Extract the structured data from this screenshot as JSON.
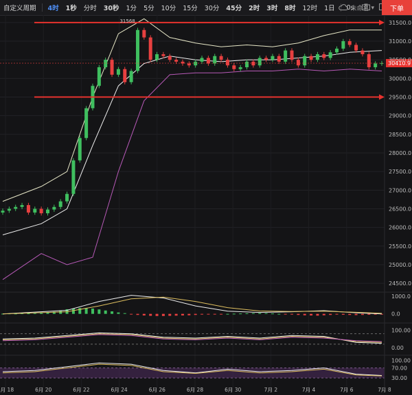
{
  "toolbar": {
    "custom_period": "自定义周期",
    "intervals": [
      "4时",
      "1秒",
      "分时",
      "30秒",
      "1分",
      "5分",
      "10分",
      "15分",
      "30分",
      "45分",
      "2时",
      "3时",
      "8时",
      "12时",
      "1日"
    ],
    "active_interval": "4时",
    "bold_intervals": [
      "4时",
      "1秒",
      "30秒",
      "45分",
      "2时",
      "3时",
      "8时"
    ],
    "seconds_label": "0s",
    "cloud_label": "未命名",
    "order_button": "下单"
  },
  "chart_data": [
    {
      "type": "candlestick",
      "title": "",
      "ylim": [
        24300,
        31700
      ],
      "y_ticks": [
        24500,
        25000,
        25500,
        26000,
        26500,
        27000,
        27500,
        28000,
        28500,
        29000,
        29500,
        30000,
        30500,
        31000,
        31500
      ],
      "x_ticks": [
        "6月 18",
        "6月 20",
        "6月 22",
        "6月 24",
        "6月 26",
        "6月 28",
        "6月 30",
        "7月 2",
        "7月 4",
        "7月 6",
        "7月 8"
      ],
      "annotations": {
        "high_label": "31568",
        "last_price": "30410.9"
      },
      "horizontal_lines": [
        31500,
        29500
      ],
      "close_points": [
        [
          0,
          26450
        ],
        [
          1,
          26500
        ],
        [
          2,
          26550
        ],
        [
          3,
          26600
        ],
        [
          4,
          26400
        ],
        [
          5,
          26500
        ],
        [
          6,
          26380
        ],
        [
          7,
          26480
        ],
        [
          8,
          26550
        ],
        [
          9,
          26700
        ],
        [
          10,
          26900
        ],
        [
          11,
          27800
        ],
        [
          12,
          28400
        ],
        [
          13,
          29200
        ],
        [
          14,
          29800
        ],
        [
          15,
          30300
        ],
        [
          16,
          30500
        ],
        [
          17,
          30100
        ],
        [
          18,
          30250
        ],
        [
          19,
          29900
        ],
        [
          20,
          30200
        ],
        [
          21,
          31300
        ],
        [
          22,
          31100
        ],
        [
          23,
          30500
        ],
        [
          24,
          30650
        ],
        [
          25,
          30600
        ],
        [
          26,
          30500
        ],
        [
          27,
          30450
        ],
        [
          28,
          30400
        ],
        [
          29,
          30350
        ],
        [
          30,
          30450
        ],
        [
          31,
          30550
        ],
        [
          32,
          30400
        ],
        [
          33,
          30600
        ],
        [
          34,
          30500
        ],
        [
          35,
          30350
        ],
        [
          36,
          30250
        ],
        [
          37,
          30300
        ],
        [
          38,
          30450
        ],
        [
          39,
          30350
        ],
        [
          40,
          30550
        ],
        [
          41,
          30500
        ],
        [
          42,
          30600
        ],
        [
          43,
          30450
        ],
        [
          44,
          30750
        ],
        [
          45,
          30500
        ],
        [
          46,
          30350
        ],
        [
          47,
          30600
        ],
        [
          48,
          30500
        ],
        [
          49,
          30650
        ],
        [
          50,
          30550
        ],
        [
          51,
          30700
        ],
        [
          52,
          30800
        ],
        [
          53,
          31000
        ],
        [
          54,
          30900
        ],
        [
          55,
          30750
        ],
        [
          56,
          30650
        ],
        [
          57,
          30300
        ],
        [
          58,
          30400
        ],
        [
          59,
          30410
        ]
      ],
      "bollinger": {
        "upper": [
          [
            0,
            26700
          ],
          [
            6,
            27100
          ],
          [
            10,
            27500
          ],
          [
            14,
            29500
          ],
          [
            18,
            31200
          ],
          [
            22,
            31600
          ],
          [
            26,
            31100
          ],
          [
            30,
            30950
          ],
          [
            34,
            30850
          ],
          [
            38,
            30900
          ],
          [
            42,
            30850
          ],
          [
            46,
            30950
          ],
          [
            50,
            31150
          ],
          [
            54,
            31300
          ],
          [
            59,
            31300
          ]
        ],
        "middle": [
          [
            0,
            25800
          ],
          [
            6,
            26100
          ],
          [
            10,
            26500
          ],
          [
            14,
            28200
          ],
          [
            18,
            29800
          ],
          [
            22,
            30400
          ],
          [
            26,
            30600
          ],
          [
            30,
            30500
          ],
          [
            34,
            30450
          ],
          [
            38,
            30500
          ],
          [
            42,
            30500
          ],
          [
            46,
            30550
          ],
          [
            50,
            30600
          ],
          [
            54,
            30700
          ],
          [
            59,
            30750
          ]
        ],
        "lower": [
          [
            0,
            24600
          ],
          [
            6,
            25300
          ],
          [
            10,
            25000
          ],
          [
            14,
            25200
          ],
          [
            18,
            27500
          ],
          [
            22,
            29400
          ],
          [
            26,
            30100
          ],
          [
            30,
            30150
          ],
          [
            34,
            30150
          ],
          [
            38,
            30200
          ],
          [
            42,
            30200
          ],
          [
            46,
            30250
          ],
          [
            50,
            30200
          ],
          [
            54,
            30250
          ],
          [
            59,
            30200
          ]
        ]
      }
    },
    {
      "type": "macd",
      "y_ticks": [
        1000,
        0
      ],
      "ylim": [
        -400,
        1150
      ],
      "histogram": [
        10,
        20,
        15,
        30,
        25,
        40,
        60,
        80,
        120,
        200,
        260,
        300,
        330,
        330,
        300,
        250,
        190,
        140,
        80,
        40,
        -20,
        -60,
        -90,
        -110,
        -120,
        -120,
        -110,
        -100,
        -90,
        -80,
        -60,
        -40,
        -30,
        -20,
        -10,
        0,
        10,
        20,
        30,
        40,
        50,
        40,
        20,
        0,
        -20,
        -40,
        -60,
        -80,
        -90,
        -100,
        -80,
        -60,
        -40,
        -50,
        -60,
        -70,
        -60,
        -50,
        -40,
        -30
      ],
      "dif": [
        [
          0,
          0
        ],
        [
          10,
          200
        ],
        [
          15,
          700
        ],
        [
          20,
          1050
        ],
        [
          25,
          900
        ],
        [
          30,
          450
        ],
        [
          35,
          150
        ],
        [
          40,
          80
        ],
        [
          45,
          120
        ],
        [
          50,
          180
        ],
        [
          55,
          60
        ],
        [
          59,
          0
        ]
      ],
      "dea": [
        [
          0,
          0
        ],
        [
          10,
          120
        ],
        [
          15,
          450
        ],
        [
          20,
          850
        ],
        [
          25,
          950
        ],
        [
          30,
          700
        ],
        [
          35,
          350
        ],
        [
          40,
          160
        ],
        [
          45,
          130
        ],
        [
          50,
          150
        ],
        [
          55,
          90
        ],
        [
          59,
          30
        ]
      ]
    },
    {
      "type": "line",
      "name": "",
      "y_ticks": [
        100,
        0
      ],
      "ylim": [
        -20,
        130
      ],
      "lines": [
        [
          [
            0,
            50
          ],
          [
            5,
            55
          ],
          [
            10,
            70
          ],
          [
            15,
            85
          ],
          [
            20,
            80
          ],
          [
            25,
            60
          ],
          [
            30,
            55
          ],
          [
            35,
            65
          ],
          [
            40,
            55
          ],
          [
            45,
            70
          ],
          [
            50,
            65
          ],
          [
            55,
            30
          ],
          [
            59,
            25
          ]
        ],
        [
          [
            0,
            45
          ],
          [
            5,
            50
          ],
          [
            10,
            65
          ],
          [
            15,
            80
          ],
          [
            20,
            75
          ],
          [
            25,
            55
          ],
          [
            30,
            50
          ],
          [
            35,
            60
          ],
          [
            40,
            50
          ],
          [
            45,
            65
          ],
          [
            50,
            60
          ],
          [
            55,
            35
          ],
          [
            59,
            30
          ]
        ],
        [
          [
            0,
            40
          ],
          [
            5,
            45
          ],
          [
            10,
            60
          ],
          [
            15,
            75
          ],
          [
            20,
            70
          ],
          [
            25,
            50
          ],
          [
            30,
            45
          ],
          [
            35,
            55
          ],
          [
            40,
            45
          ],
          [
            45,
            60
          ],
          [
            50,
            55
          ],
          [
            55,
            40
          ],
          [
            59,
            35
          ]
        ]
      ]
    },
    {
      "type": "line",
      "name": "",
      "y_ticks": [
        100,
        70,
        30
      ],
      "ylim": [
        0,
        110
      ],
      "lines": [
        [
          [
            0,
            55
          ],
          [
            5,
            60
          ],
          [
            10,
            75
          ],
          [
            15,
            90
          ],
          [
            20,
            85
          ],
          [
            25,
            60
          ],
          [
            30,
            50
          ],
          [
            35,
            65
          ],
          [
            40,
            55
          ],
          [
            45,
            60
          ],
          [
            50,
            70
          ],
          [
            55,
            45
          ],
          [
            59,
            40
          ]
        ],
        [
          [
            0,
            50
          ],
          [
            5,
            55
          ],
          [
            10,
            70
          ],
          [
            15,
            85
          ],
          [
            20,
            80
          ],
          [
            25,
            55
          ],
          [
            30,
            48
          ],
          [
            35,
            60
          ],
          [
            40,
            50
          ],
          [
            45,
            55
          ],
          [
            50,
            65
          ],
          [
            55,
            42
          ],
          [
            59,
            38
          ]
        ]
      ]
    }
  ]
}
